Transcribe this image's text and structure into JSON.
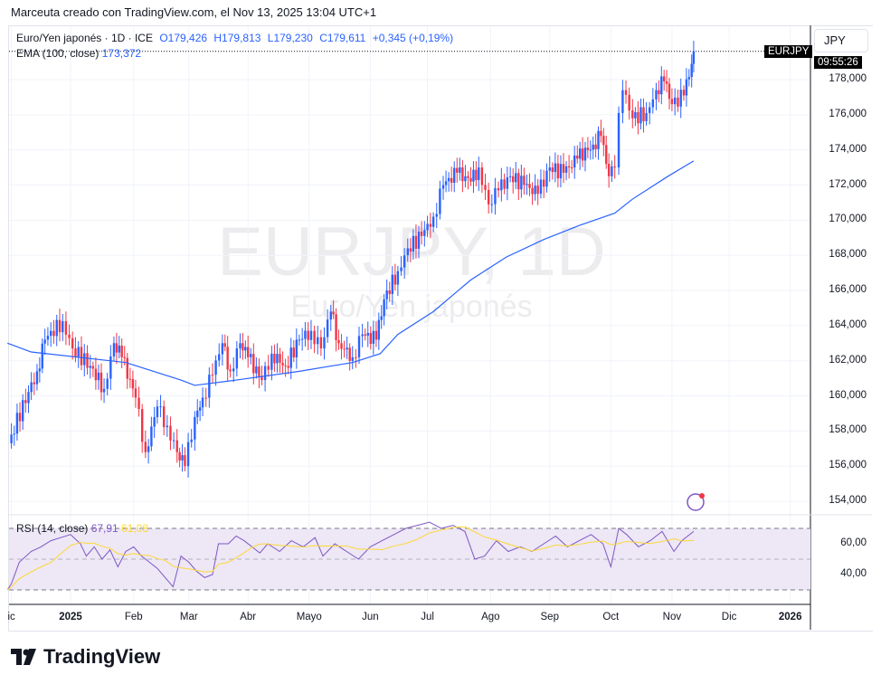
{
  "credit": "Marceuta creado con TradingView.com, el Nov 13, 2025 13:04 UTC+1",
  "legend": {
    "symbol": "Euro/Yen japonés · 1D · ICE",
    "o": "O179,426",
    "h": "H179,813",
    "l": "L179,230",
    "c": "C179,611",
    "chg": "+0,345 (+0,19%)"
  },
  "ema_label": {
    "name": "EMA (100, close)",
    "value": "173,372"
  },
  "rsi_label": {
    "name": "RSI (14, close)",
    "value": "67,91",
    "ma": "61,08"
  },
  "currency": "JPY",
  "symbol_tag": "EURJPY",
  "countdown": "09:55:26",
  "watermark": {
    "title": "EURJPY, 1D",
    "subtitle": "Euro/Yen japonés"
  },
  "logo": "TradingView",
  "colors": {
    "up": "#2962ff",
    "down": "#f23645",
    "ema": "#2962ff",
    "rsi": "#7e57c2",
    "rsi_ma": "#fdd835",
    "band": "#ede7f6"
  },
  "chart_data": {
    "type": "candlestick",
    "price_axis": {
      "ticks": [
        "178,000",
        "176,000",
        "174,000",
        "172,000",
        "170,000",
        "168,000",
        "166,000",
        "164,000",
        "162,000",
        "160,000",
        "158,000",
        "156,000",
        "154,000"
      ],
      "range": [
        153000,
        180500
      ]
    },
    "time_axis": {
      "ticks": [
        {
          "label": "ic",
          "day": -30
        },
        {
          "label": "2025",
          "day": 0,
          "bold": true
        },
        {
          "label": "Feb",
          "day": 32
        },
        {
          "label": "Mar",
          "day": 60
        },
        {
          "label": "Abr",
          "day": 90
        },
        {
          "label": "Mayo",
          "day": 121
        },
        {
          "label": "Jun",
          "day": 152
        },
        {
          "label": "Jul",
          "day": 181
        },
        {
          "label": "Ago",
          "day": 213
        },
        {
          "label": "Sep",
          "day": 243
        },
        {
          "label": "Oct",
          "day": 274
        },
        {
          "label": "Nov",
          "day": 305
        },
        {
          "label": "Dic",
          "day": 334
        },
        {
          "label": "2026",
          "day": 365,
          "bold": true
        }
      ]
    },
    "close_path": [
      [
        -32,
        157300
      ],
      [
        -30,
        157800
      ],
      [
        -17,
        161400
      ],
      [
        -13,
        163200
      ],
      [
        -4,
        164250
      ],
      [
        1,
        162700
      ],
      [
        10,
        161700
      ],
      [
        17,
        160400
      ],
      [
        22,
        163000
      ],
      [
        26,
        162200
      ],
      [
        33,
        159900
      ],
      [
        38,
        156800
      ],
      [
        44,
        159400
      ],
      [
        49,
        158300
      ],
      [
        54,
        156800
      ],
      [
        58,
        156000
      ],
      [
        63,
        158800
      ],
      [
        67,
        159900
      ],
      [
        72,
        161200
      ],
      [
        77,
        163000
      ],
      [
        81,
        161400
      ],
      [
        86,
        163000
      ],
      [
        90,
        162200
      ],
      [
        97,
        160900
      ],
      [
        102,
        162400
      ],
      [
        109,
        161700
      ],
      [
        116,
        163200
      ],
      [
        122,
        163700
      ],
      [
        127,
        162700
      ],
      [
        132,
        164800
      ],
      [
        136,
        163000
      ],
      [
        143,
        162200
      ],
      [
        148,
        163500
      ],
      [
        155,
        163200
      ],
      [
        159,
        165500
      ],
      [
        166,
        167100
      ],
      [
        171,
        168400
      ],
      [
        178,
        169100
      ],
      [
        184,
        170200
      ],
      [
        189,
        172000
      ],
      [
        196,
        172700
      ],
      [
        203,
        172200
      ],
      [
        207,
        173000
      ],
      [
        212,
        170900
      ],
      [
        217,
        171700
      ],
      [
        223,
        172500
      ],
      [
        230,
        172000
      ],
      [
        237,
        171500
      ],
      [
        243,
        173000
      ],
      [
        250,
        172700
      ],
      [
        257,
        173500
      ],
      [
        265,
        174300
      ],
      [
        269,
        174800
      ],
      [
        273,
        172500
      ],
      [
        276,
        173000
      ],
      [
        278,
        176100
      ],
      [
        280,
        177400
      ],
      [
        285,
        175800
      ],
      [
        292,
        176100
      ],
      [
        297,
        177400
      ],
      [
        301,
        177900
      ],
      [
        305,
        176600
      ],
      [
        311,
        177100
      ],
      [
        315,
        178900
      ],
      [
        316,
        179611
      ]
    ],
    "ema100": [
      [
        -32,
        163000
      ],
      [
        -20,
        162500
      ],
      [
        28,
        161900
      ],
      [
        56,
        160900
      ],
      [
        63,
        160600
      ],
      [
        84,
        160900
      ],
      [
        116,
        161400
      ],
      [
        143,
        161900
      ],
      [
        157,
        162400
      ],
      [
        166,
        163500
      ],
      [
        184,
        164800
      ],
      [
        203,
        166600
      ],
      [
        221,
        167900
      ],
      [
        240,
        168900
      ],
      [
        258,
        169700
      ],
      [
        276,
        170400
      ],
      [
        285,
        171200
      ],
      [
        303,
        172500
      ],
      [
        316,
        173372
      ]
    ],
    "rsi": {
      "levels": [
        70,
        50,
        30
      ],
      "ticks": [
        "60,00",
        "40,00"
      ],
      "values": [
        [
          -32,
          30
        ],
        [
          -30,
          34
        ],
        [
          -26,
          48
        ],
        [
          -20,
          55
        ],
        [
          -15,
          58
        ],
        [
          -10,
          62
        ],
        [
          -5,
          64
        ],
        [
          0,
          66
        ],
        [
          5,
          60
        ],
        [
          8,
          52
        ],
        [
          12,
          58
        ],
        [
          16,
          50
        ],
        [
          20,
          56
        ],
        [
          24,
          45
        ],
        [
          28,
          55
        ],
        [
          32,
          58
        ],
        [
          36,
          52
        ],
        [
          40,
          48
        ],
        [
          44,
          44
        ],
        [
          48,
          38
        ],
        [
          52,
          32
        ],
        [
          56,
          52
        ],
        [
          60,
          48
        ],
        [
          64,
          42
        ],
        [
          68,
          38
        ],
        [
          72,
          40
        ],
        [
          75,
          60
        ],
        [
          80,
          60
        ],
        [
          84,
          65
        ],
        [
          88,
          62
        ],
        [
          92,
          58
        ],
        [
          96,
          54
        ],
        [
          100,
          60
        ],
        [
          106,
          55
        ],
        [
          112,
          62
        ],
        [
          118,
          58
        ],
        [
          124,
          64
        ],
        [
          128,
          52
        ],
        [
          134,
          60
        ],
        [
          140,
          55
        ],
        [
          146,
          50
        ],
        [
          152,
          58
        ],
        [
          158,
          62
        ],
        [
          164,
          66
        ],
        [
          170,
          70
        ],
        [
          176,
          72
        ],
        [
          182,
          74
        ],
        [
          188,
          70
        ],
        [
          194,
          72
        ],
        [
          200,
          68
        ],
        [
          205,
          50
        ],
        [
          210,
          52
        ],
        [
          216,
          62
        ],
        [
          222,
          55
        ],
        [
          228,
          58
        ],
        [
          234,
          55
        ],
        [
          240,
          60
        ],
        [
          246,
          65
        ],
        [
          252,
          58
        ],
        [
          258,
          62
        ],
        [
          264,
          66
        ],
        [
          270,
          60
        ],
        [
          274,
          45
        ],
        [
          278,
          70
        ],
        [
          282,
          66
        ],
        [
          288,
          58
        ],
        [
          294,
          62
        ],
        [
          300,
          68
        ],
        [
          306,
          55
        ],
        [
          310,
          62
        ],
        [
          316,
          68
        ]
      ]
    }
  }
}
